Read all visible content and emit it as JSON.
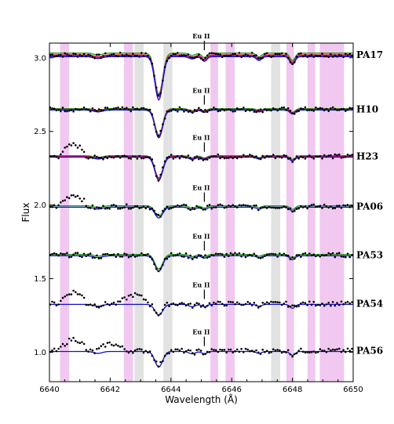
{
  "chart_data": {
    "type": "line",
    "xlabel": "Wavelength (Å)",
    "ylabel": "Flux",
    "xlim": [
      6640,
      6650
    ],
    "ylim": [
      0.8,
      3.1
    ],
    "xticks": [
      6640,
      6642,
      6644,
      6646,
      6648,
      6650
    ],
    "yticks": [
      1.0,
      1.5,
      2.0,
      2.5,
      3.0
    ],
    "grid": false,
    "bands_magenta": [
      [
        6640.35,
        6640.65
      ],
      [
        6642.45,
        6642.75
      ],
      [
        6645.3,
        6645.55
      ],
      [
        6645.8,
        6646.1
      ],
      [
        6647.8,
        6648.05
      ],
      [
        6648.5,
        6648.75
      ],
      [
        6648.9,
        6649.7
      ]
    ],
    "bands_gray": [
      [
        6642.8,
        6643.1
      ],
      [
        6643.75,
        6644.05
      ],
      [
        6647.3,
        6647.6
      ]
    ],
    "eu_line": {
      "label": "Eu II",
      "wavelength": 6645.1
    },
    "stars": [
      {
        "name": "PA17",
        "level": 3.02,
        "line_depth": 0.28,
        "models": [
          "green",
          "red",
          "magenta",
          "blue"
        ]
      },
      {
        "name": "H10",
        "level": 2.65,
        "line_depth": 0.18,
        "models": [
          "green",
          "red",
          "blue"
        ]
      },
      {
        "name": "H23",
        "level": 2.33,
        "line_depth": 0.15,
        "models": [
          "green",
          "red",
          "magenta",
          "blue"
        ]
      },
      {
        "name": "PA06",
        "level": 1.99,
        "line_depth": 0.07,
        "models": [
          "green",
          "blue"
        ]
      },
      {
        "name": "PA53",
        "level": 1.66,
        "line_depth": 0.1,
        "models": [
          "green",
          "blue"
        ]
      },
      {
        "name": "PA54",
        "level": 1.33,
        "line_depth": 0.07,
        "models": [
          "blue"
        ]
      },
      {
        "name": "PA56",
        "level": 1.01,
        "line_depth": 0.1,
        "models": [
          "blue"
        ]
      }
    ],
    "colors": {
      "magenta_band": "#f0c8f0",
      "gray_band": "#e2e2e2",
      "green": "#1a9a1a",
      "red": "#e01010",
      "magenta": "#c010c0",
      "blue": "#1010d0"
    }
  }
}
